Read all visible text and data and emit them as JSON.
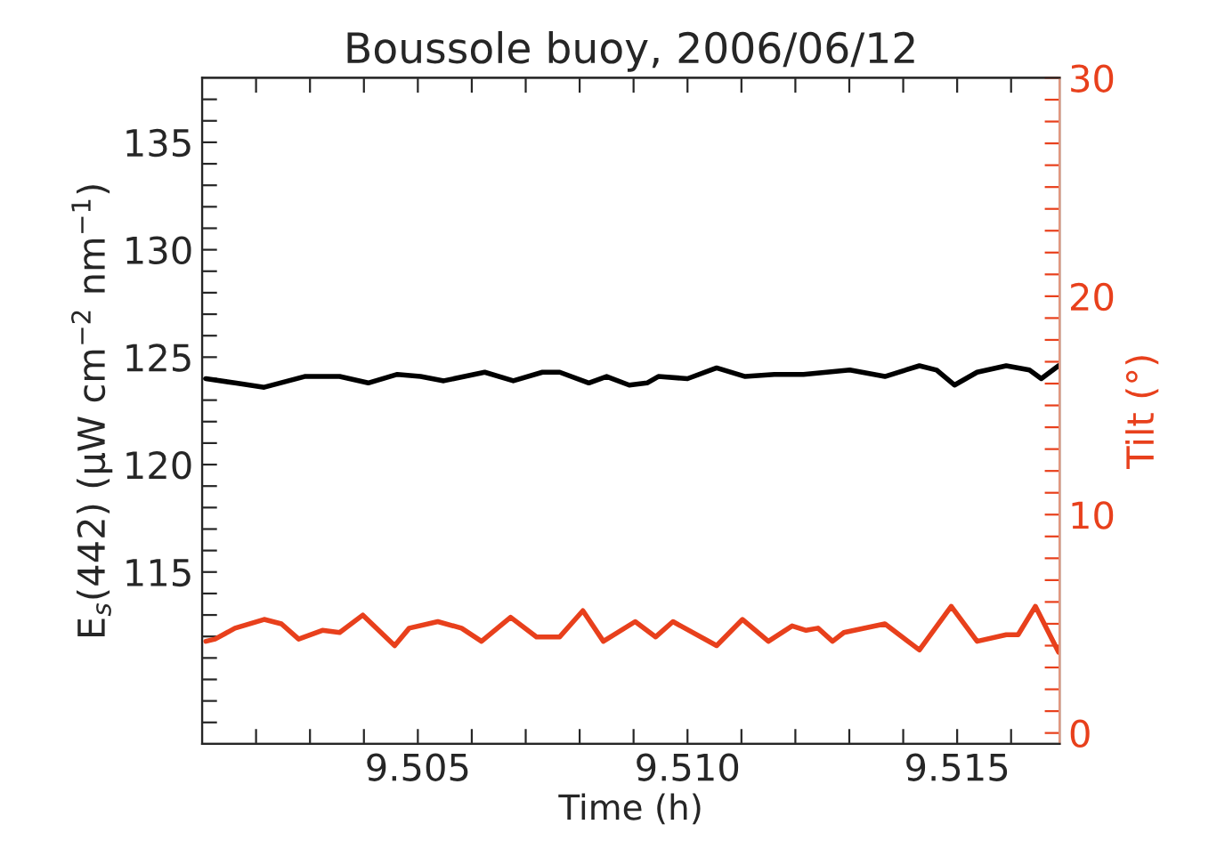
{
  "chart_data": {
    "type": "line",
    "title": "Boussole buoy, 2006/06/12",
    "xlabel": "Time (h)",
    "ylabel": "E$_{s}$(442) (μW cm$^{−2}$ nm$^{−1}$)",
    "y2label": "Tilt (°)",
    "xlim": [
      9.501,
      9.5169
    ],
    "xticks": [
      {
        "value": 9.502,
        "label": null
      },
      {
        "value": 9.503,
        "label": null
      },
      {
        "value": 9.504,
        "label": null
      },
      {
        "value": 9.505,
        "label": "9.505"
      },
      {
        "value": 9.506,
        "label": null
      },
      {
        "value": 9.507,
        "label": null
      },
      {
        "value": 9.508,
        "label": null
      },
      {
        "value": 9.509,
        "label": null
      },
      {
        "value": 9.51,
        "label": "9.510"
      },
      {
        "value": 9.511,
        "label": null
      },
      {
        "value": 9.512,
        "label": null
      },
      {
        "value": 9.513,
        "label": null
      },
      {
        "value": 9.514,
        "label": null
      },
      {
        "value": 9.515,
        "label": "9.515"
      },
      {
        "value": 9.516,
        "label": null
      }
    ],
    "ylim": [
      107,
      138
    ],
    "yticks": [
      {
        "value": 108,
        "label": null
      },
      {
        "value": 109,
        "label": null
      },
      {
        "value": 110,
        "label": null
      },
      {
        "value": 111,
        "label": null
      },
      {
        "value": 112,
        "label": null
      },
      {
        "value": 113,
        "label": null
      },
      {
        "value": 114,
        "label": null
      },
      115,
      {
        "value": 116,
        "label": null
      },
      {
        "value": 117,
        "label": null
      },
      {
        "value": 118,
        "label": null
      },
      {
        "value": 119,
        "label": null
      },
      120,
      {
        "value": 121,
        "label": null
      },
      {
        "value": 122,
        "label": null
      },
      {
        "value": 123,
        "label": null
      },
      {
        "value": 124,
        "label": null
      },
      125,
      {
        "value": 126,
        "label": null
      },
      {
        "value": 127,
        "label": null
      },
      {
        "value": 128,
        "label": null
      },
      {
        "value": 129,
        "label": null
      },
      130,
      {
        "value": 131,
        "label": null
      },
      {
        "value": 132,
        "label": null
      },
      {
        "value": 133,
        "label": null
      },
      {
        "value": 134,
        "label": null
      },
      135,
      {
        "value": 136,
        "label": null
      },
      {
        "value": 137,
        "label": null
      }
    ],
    "y2lim": [
      -0.5,
      30
    ],
    "y2ticks": [
      0,
      {
        "value": 1,
        "label": null
      },
      {
        "value": 2,
        "label": null
      },
      {
        "value": 3,
        "label": null
      },
      {
        "value": 4,
        "label": null
      },
      {
        "value": 5,
        "label": null
      },
      {
        "value": 6,
        "label": null
      },
      {
        "value": 7,
        "label": null
      },
      {
        "value": 8,
        "label": null
      },
      {
        "value": 9,
        "label": null
      },
      10,
      {
        "value": 11,
        "label": null
      },
      {
        "value": 12,
        "label": null
      },
      {
        "value": 13,
        "label": null
      },
      {
        "value": 14,
        "label": null
      },
      {
        "value": 15,
        "label": null
      },
      {
        "value": 16,
        "label": null
      },
      {
        "value": 17,
        "label": null
      },
      {
        "value": 18,
        "label": null
      },
      {
        "value": 19,
        "label": null
      },
      20,
      {
        "value": 21,
        "label": null
      },
      {
        "value": 22,
        "label": null
      },
      {
        "value": 23,
        "label": null
      },
      {
        "value": 24,
        "label": null
      },
      {
        "value": 25,
        "label": null
      },
      {
        "value": 26,
        "label": null
      },
      {
        "value": 27,
        "label": null
      },
      {
        "value": 28,
        "label": null
      },
      {
        "value": 29,
        "label": null
      },
      30
    ],
    "grid": false,
    "legend": false,
    "series": [
      {
        "color": "#000000",
        "x": [
          9.50107,
          9.50161,
          9.50215,
          9.5029,
          9.50355,
          9.50408,
          9.50462,
          9.50505,
          9.50548,
          9.50624,
          9.50677,
          9.50731,
          9.50763,
          9.50817,
          9.5085,
          9.50892,
          9.50925,
          9.50946,
          9.51,
          9.51054,
          9.51107,
          9.51161,
          9.51215,
          9.51301,
          9.51366,
          9.5143,
          9.51462,
          9.51495,
          9.51537,
          9.51591,
          9.51634,
          9.51656,
          9.51688
        ],
        "values": [
          124.0,
          123.8,
          123.6,
          124.1,
          124.1,
          123.8,
          124.2,
          124.1,
          123.9,
          124.3,
          123.9,
          124.3,
          124.3,
          123.8,
          124.1,
          123.7,
          123.8,
          124.1,
          124.0,
          124.5,
          124.1,
          124.2,
          124.2,
          124.4,
          124.1,
          124.6,
          124.4,
          123.7,
          124.3,
          124.6,
          124.4,
          124.0,
          124.6
        ]
      },
      {
        "color": "#e8401c",
        "axis": "y2",
        "x": [
          9.50107,
          9.50124,
          9.50161,
          9.50215,
          9.50247,
          9.50279,
          9.50323,
          9.50355,
          9.50398,
          9.50457,
          9.50484,
          9.50537,
          9.50581,
          9.50618,
          9.50672,
          9.5072,
          9.50763,
          9.50806,
          9.50844,
          9.50903,
          9.50941,
          9.50973,
          9.51054,
          9.51102,
          9.5115,
          9.51194,
          9.5122,
          9.51242,
          9.51269,
          9.5129,
          9.51366,
          9.5143,
          9.51489,
          9.51537,
          9.51591,
          9.51613,
          9.51645,
          9.51688
        ],
        "values": [
          4.2,
          4.3,
          4.8,
          5.2,
          5.0,
          4.3,
          4.7,
          4.6,
          5.4,
          4.0,
          4.8,
          5.1,
          4.8,
          4.2,
          5.3,
          4.4,
          4.4,
          5.6,
          4.2,
          5.1,
          4.4,
          5.1,
          4.0,
          5.2,
          4.2,
          4.9,
          4.7,
          4.8,
          4.2,
          4.6,
          5.0,
          3.8,
          5.8,
          4.2,
          4.5,
          4.5,
          5.8,
          3.7
        ]
      }
    ]
  }
}
